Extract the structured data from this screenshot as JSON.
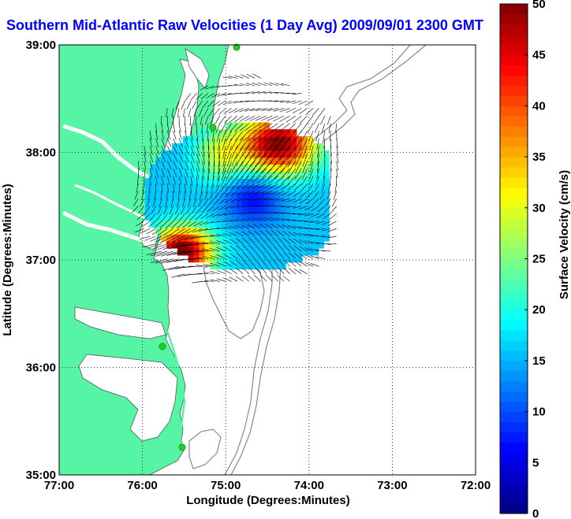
{
  "title": "Southern Mid-Atlantic Raw Velocities (1 Day Avg) 2009/09/01 2300 GMT",
  "map": {
    "xlabel": "Longitude (Degrees:Minutes)",
    "ylabel": "Latitude (Degrees:Minutes)",
    "x_ticks": [
      "77:00",
      "76:00",
      "75:00",
      "74:00",
      "73:00",
      "72:00"
    ],
    "y_ticks": [
      "39:00",
      "38:00",
      "37:00",
      "36:00",
      "35:00"
    ],
    "lon_range": [
      -77,
      -72
    ],
    "lat_range": [
      35,
      39
    ],
    "grid": true,
    "land_color": "#55f5a5",
    "station_color": "#22cc22"
  },
  "colorbar": {
    "label": "Surface Velocity (cm/s)",
    "ticks": [
      "0",
      "5",
      "10",
      "15",
      "20",
      "25",
      "30",
      "35",
      "40",
      "45",
      "50"
    ],
    "range": [
      0,
      50
    ],
    "colormap": "jet"
  }
}
